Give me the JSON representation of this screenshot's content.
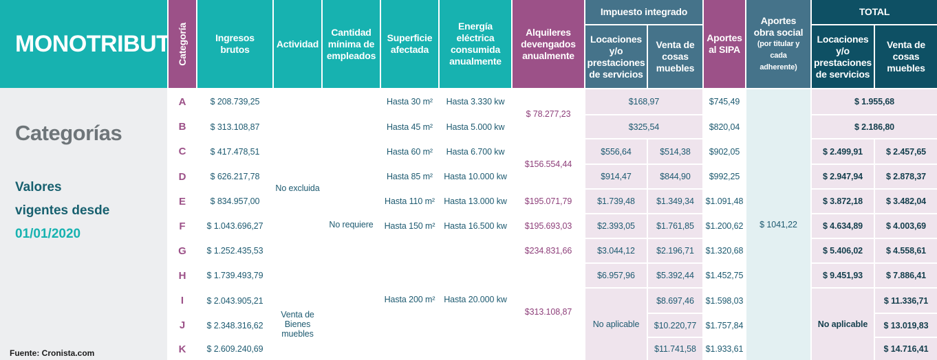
{
  "title": "MONOTRIBUTO",
  "sidebar": {
    "heading": "Categorías",
    "valores_l1": "Valores",
    "valores_l2": "vigentes desde",
    "valores_date": "01/01/2020",
    "source": "Fuente: Cronista.com"
  },
  "headers": {
    "categoria": "Categoría",
    "ingresos": "Ingresos brutos",
    "actividad": "Actividad",
    "empleados": "Cantidad mínima de empleados",
    "superficie": "Superficie afectada",
    "energia": "Energía eléctrica consumida anualmente",
    "alquileres": "Alquileres devengados anualmente",
    "impuesto_group": "Impuesto integrado",
    "imp_locaciones": "Locaciones y/o prestaciones de servicios",
    "imp_venta": "Venta de cosas muebles",
    "sipa": "Aportes al SIPA",
    "obra_social": "Aportes obra social",
    "obra_social_note": "(por titular y cada adherente)",
    "total_group": "TOTAL",
    "tot_locaciones": "Locaciones y/o prestaciones de servicios",
    "tot_venta": "Venta de cosas muebles"
  },
  "rows": [
    {
      "cat": "A",
      "ingresos": "$ 208.739,25",
      "sipa": "$745,49"
    },
    {
      "cat": "B",
      "ingresos": "$ 313.108,87",
      "sipa": "$820,04"
    },
    {
      "cat": "C",
      "ingresos": "$ 417.478,51",
      "sipa": "$902,05"
    },
    {
      "cat": "D",
      "ingresos": "$ 626.217,78",
      "sipa": "$992,25"
    },
    {
      "cat": "E",
      "ingresos": "$ 834.957,00",
      "sipa": "$1.091,48"
    },
    {
      "cat": "F",
      "ingresos": "$ 1.043.696,27",
      "sipa": "$1.200,62"
    },
    {
      "cat": "G",
      "ingresos": "$ 1.252.435,53",
      "sipa": "$1.320,68"
    },
    {
      "cat": "H",
      "ingresos": "$ 1.739.493,79",
      "sipa": "$1.452,75"
    },
    {
      "cat": "I",
      "ingresos": "$ 2.043.905,21",
      "sipa": "$1.598,03"
    },
    {
      "cat": "J",
      "ingresos": "$ 2.348.316,62",
      "sipa": "$1.757,84"
    },
    {
      "cat": "K",
      "ingresos": "$ 2.609.240,69",
      "sipa": "$1.933,61"
    }
  ],
  "actividad": {
    "no_excluida": "No excluida",
    "venta_bienes": "Venta de Bienes muebles"
  },
  "empleados": {
    "no_requiere": "No requiere"
  },
  "superficie": [
    "Hasta 30 m²",
    "Hasta 45 m²",
    "Hasta 60 m²",
    "Hasta 85 m²",
    "Hasta 110 m²",
    "Hasta 150 m²",
    "Hasta 200 m²"
  ],
  "energia": [
    "Hasta 3.330 kw",
    "Hasta 5.000 kw",
    "Hasta 6.700 kw",
    "Hasta 10.000 kw",
    "Hasta 13.000 kw",
    "Hasta 16.500 kw",
    "Hasta 20.000 kw"
  ],
  "alquileres": [
    "$ 78.277,23",
    "$156.554,44",
    "$195.071,79",
    "$195.693,03",
    "$234.831,66",
    "$313.108,87"
  ],
  "impuesto": {
    "ab": [
      "$168,97",
      "$325,54"
    ],
    "locaciones": [
      "$556,64",
      "$914,47",
      "$1.739,48",
      "$2.393,05",
      "$3.044,12",
      "$6.957,96"
    ],
    "venta": [
      "$514,38",
      "$844,90",
      "$1.349,34",
      "$1.761,85",
      "$2.196,71",
      "$5.392,44",
      "$8.697,46",
      "$10.220,77",
      "$11.741,58"
    ],
    "no_aplicable": "No aplicable"
  },
  "obra_social": "$ 1041,22",
  "total": {
    "ab": [
      "$ 1.955,68",
      "$ 2.186,80"
    ],
    "locaciones": [
      "$ 2.499,91",
      "$ 2.947,94",
      "$ 3.872,18",
      "$ 4.634,89",
      "$ 5.406,02",
      "$ 9.451,93"
    ],
    "venta": [
      "$ 2.457,65",
      "$ 2.878,37",
      "$ 3.482,04",
      "$ 4.003,69",
      "$ 4.558,61",
      "$ 7.886,41",
      "$ 11.336,71",
      "$ 13.019,83",
      "$ 14.716,41"
    ],
    "no_aplicable": "No aplicable"
  },
  "colors": {
    "teal": "#17b2b0",
    "purple": "#9c5188",
    "steel": "#45738a",
    "navy": "#0e5064",
    "lilac": "#efe4ed"
  }
}
